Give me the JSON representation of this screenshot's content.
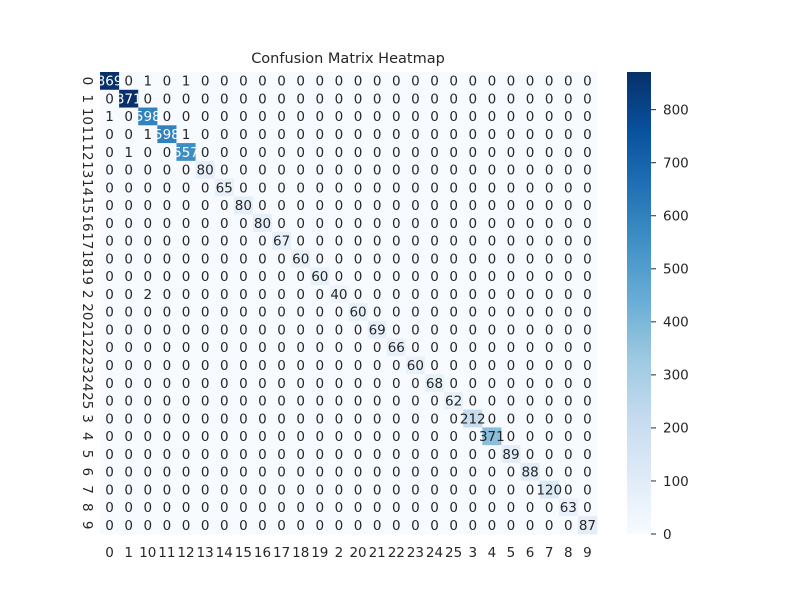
{
  "chart_data": {
    "type": "heatmap",
    "title": "Confusion Matrix Heatmap",
    "xlabel": "",
    "ylabel": "",
    "x_labels": [
      "0",
      "1",
      "10",
      "11",
      "12",
      "13",
      "14",
      "15",
      "16",
      "17",
      "18",
      "19",
      "2",
      "20",
      "21",
      "22",
      "23",
      "24",
      "25",
      "3",
      "4",
      "5",
      "6",
      "7",
      "8",
      "9"
    ],
    "y_labels": [
      "0",
      "1",
      "10",
      "11",
      "12",
      "13",
      "14",
      "15",
      "16",
      "17",
      "18",
      "19",
      "2",
      "20",
      "21",
      "22",
      "23",
      "24",
      "25",
      "3",
      "4",
      "5",
      "6",
      "7",
      "8",
      "9"
    ],
    "values": [
      [
        869,
        0,
        1,
        0,
        1,
        0,
        0,
        0,
        0,
        0,
        0,
        0,
        0,
        0,
        0,
        0,
        0,
        0,
        0,
        0,
        0,
        0,
        0,
        0,
        0,
        0
      ],
      [
        0,
        871,
        0,
        0,
        0,
        0,
        0,
        0,
        0,
        0,
        0,
        0,
        0,
        0,
        0,
        0,
        0,
        0,
        0,
        0,
        0,
        0,
        0,
        0,
        0,
        0
      ],
      [
        1,
        0,
        598,
        0,
        0,
        0,
        0,
        0,
        0,
        0,
        0,
        0,
        0,
        0,
        0,
        0,
        0,
        0,
        0,
        0,
        0,
        0,
        0,
        0,
        0,
        0
      ],
      [
        0,
        0,
        1,
        598,
        1,
        0,
        0,
        0,
        0,
        0,
        0,
        0,
        0,
        0,
        0,
        0,
        0,
        0,
        0,
        0,
        0,
        0,
        0,
        0,
        0,
        0
      ],
      [
        0,
        1,
        0,
        0,
        557,
        0,
        0,
        0,
        0,
        0,
        0,
        0,
        0,
        0,
        0,
        0,
        0,
        0,
        0,
        0,
        0,
        0,
        0,
        0,
        0,
        0
      ],
      [
        0,
        0,
        0,
        0,
        0,
        80,
        0,
        0,
        0,
        0,
        0,
        0,
        0,
        0,
        0,
        0,
        0,
        0,
        0,
        0,
        0,
        0,
        0,
        0,
        0,
        0
      ],
      [
        0,
        0,
        0,
        0,
        0,
        0,
        65,
        0,
        0,
        0,
        0,
        0,
        0,
        0,
        0,
        0,
        0,
        0,
        0,
        0,
        0,
        0,
        0,
        0,
        0,
        0
      ],
      [
        0,
        0,
        0,
        0,
        0,
        0,
        0,
        80,
        0,
        0,
        0,
        0,
        0,
        0,
        0,
        0,
        0,
        0,
        0,
        0,
        0,
        0,
        0,
        0,
        0,
        0
      ],
      [
        0,
        0,
        0,
        0,
        0,
        0,
        0,
        0,
        80,
        0,
        0,
        0,
        0,
        0,
        0,
        0,
        0,
        0,
        0,
        0,
        0,
        0,
        0,
        0,
        0,
        0
      ],
      [
        0,
        0,
        0,
        0,
        0,
        0,
        0,
        0,
        0,
        67,
        0,
        0,
        0,
        0,
        0,
        0,
        0,
        0,
        0,
        0,
        0,
        0,
        0,
        0,
        0,
        0
      ],
      [
        0,
        0,
        0,
        0,
        0,
        0,
        0,
        0,
        0,
        0,
        60,
        0,
        0,
        0,
        0,
        0,
        0,
        0,
        0,
        0,
        0,
        0,
        0,
        0,
        0,
        0
      ],
      [
        0,
        0,
        0,
        0,
        0,
        0,
        0,
        0,
        0,
        0,
        0,
        60,
        0,
        0,
        0,
        0,
        0,
        0,
        0,
        0,
        0,
        0,
        0,
        0,
        0,
        0
      ],
      [
        0,
        0,
        2,
        0,
        0,
        0,
        0,
        0,
        0,
        0,
        0,
        0,
        40,
        0,
        0,
        0,
        0,
        0,
        0,
        0,
        0,
        0,
        0,
        0,
        0,
        0
      ],
      [
        0,
        0,
        0,
        0,
        0,
        0,
        0,
        0,
        0,
        0,
        0,
        0,
        0,
        60,
        0,
        0,
        0,
        0,
        0,
        0,
        0,
        0,
        0,
        0,
        0,
        0
      ],
      [
        0,
        0,
        0,
        0,
        0,
        0,
        0,
        0,
        0,
        0,
        0,
        0,
        0,
        0,
        69,
        0,
        0,
        0,
        0,
        0,
        0,
        0,
        0,
        0,
        0,
        0
      ],
      [
        0,
        0,
        0,
        0,
        0,
        0,
        0,
        0,
        0,
        0,
        0,
        0,
        0,
        0,
        0,
        66,
        0,
        0,
        0,
        0,
        0,
        0,
        0,
        0,
        0,
        0
      ],
      [
        0,
        0,
        0,
        0,
        0,
        0,
        0,
        0,
        0,
        0,
        0,
        0,
        0,
        0,
        0,
        0,
        60,
        0,
        0,
        0,
        0,
        0,
        0,
        0,
        0,
        0
      ],
      [
        0,
        0,
        0,
        0,
        0,
        0,
        0,
        0,
        0,
        0,
        0,
        0,
        0,
        0,
        0,
        0,
        0,
        68,
        0,
        0,
        0,
        0,
        0,
        0,
        0,
        0
      ],
      [
        0,
        0,
        0,
        0,
        0,
        0,
        0,
        0,
        0,
        0,
        0,
        0,
        0,
        0,
        0,
        0,
        0,
        0,
        62,
        0,
        0,
        0,
        0,
        0,
        0,
        0
      ],
      [
        0,
        0,
        0,
        0,
        0,
        0,
        0,
        0,
        0,
        0,
        0,
        0,
        0,
        0,
        0,
        0,
        0,
        0,
        0,
        212,
        0,
        0,
        0,
        0,
        0,
        0
      ],
      [
        0,
        0,
        0,
        0,
        0,
        0,
        0,
        0,
        0,
        0,
        0,
        0,
        0,
        0,
        0,
        0,
        0,
        0,
        0,
        0,
        371,
        0,
        0,
        0,
        0,
        0
      ],
      [
        0,
        0,
        0,
        0,
        0,
        0,
        0,
        0,
        0,
        0,
        0,
        0,
        0,
        0,
        0,
        0,
        0,
        0,
        0,
        0,
        0,
        89,
        0,
        0,
        0,
        0
      ],
      [
        0,
        0,
        0,
        0,
        0,
        0,
        0,
        0,
        0,
        0,
        0,
        0,
        0,
        0,
        0,
        0,
        0,
        0,
        0,
        0,
        0,
        0,
        88,
        0,
        0,
        0
      ],
      [
        0,
        0,
        0,
        0,
        0,
        0,
        0,
        0,
        0,
        0,
        0,
        0,
        0,
        0,
        0,
        0,
        0,
        0,
        0,
        0,
        0,
        0,
        0,
        120,
        0,
        0
      ],
      [
        0,
        0,
        0,
        0,
        0,
        0,
        0,
        0,
        0,
        0,
        0,
        0,
        0,
        0,
        0,
        0,
        0,
        0,
        0,
        0,
        0,
        0,
        0,
        0,
        63,
        0
      ],
      [
        0,
        0,
        0,
        0,
        0,
        0,
        0,
        0,
        0,
        0,
        0,
        0,
        0,
        0,
        0,
        0,
        0,
        0,
        0,
        0,
        0,
        0,
        0,
        0,
        0,
        87
      ]
    ],
    "vmin": 0,
    "vmax": 871,
    "colormap": "Blues",
    "colorbar_ticks": [
      0,
      100,
      200,
      300,
      400,
      500,
      600,
      700,
      800
    ],
    "grid": false,
    "colorbar_position": "right",
    "annotation_color_dark_text": "#262626",
    "annotation_color_light_text": "#ffffff"
  }
}
